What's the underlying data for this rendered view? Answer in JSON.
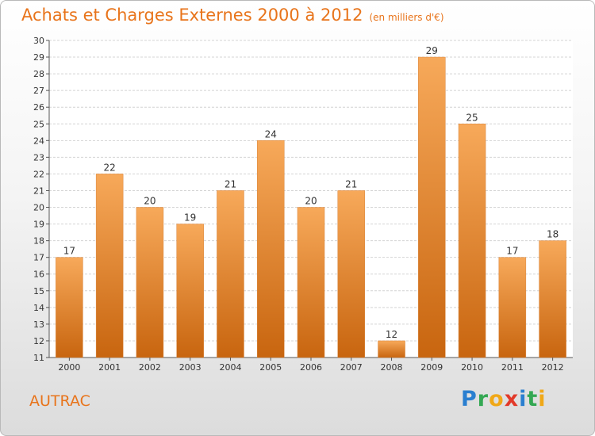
{
  "header": {
    "title": "Achats et Charges Externes 2000 à 2012",
    "unit": "(en milliers d'€)"
  },
  "footer": {
    "commune": "AUTRAC",
    "logo_letters": [
      {
        "ch": "P",
        "color": "#2a7fd0"
      },
      {
        "ch": "r",
        "color": "#34a853"
      },
      {
        "ch": "o",
        "color": "#f0a818"
      },
      {
        "ch": "x",
        "color": "#e23a2a"
      },
      {
        "ch": "i",
        "color": "#2a7fd0"
      },
      {
        "ch": "t",
        "color": "#34a853"
      },
      {
        "ch": "i",
        "color": "#f0a818"
      }
    ]
  },
  "colors": {
    "bar_top": "#f7a95a",
    "bar_bottom": "#c8650f",
    "accent": "#e8741b",
    "grid": "#d4d4d4"
  },
  "chart_data": {
    "type": "bar",
    "title": "Achats et Charges Externes 2000 à 2012",
    "unit": "(en milliers d'€)",
    "xlabel": "",
    "ylabel": "",
    "categories": [
      "2000",
      "2001",
      "2002",
      "2003",
      "2004",
      "2005",
      "2006",
      "2007",
      "2008",
      "2009",
      "2010",
      "2011",
      "2012"
    ],
    "values": [
      17,
      22,
      20,
      19,
      21,
      24,
      20,
      21,
      12,
      29,
      25,
      17,
      18
    ],
    "ylim": [
      11,
      30
    ],
    "yticks": [
      11,
      12,
      13,
      14,
      15,
      16,
      17,
      18,
      19,
      20,
      21,
      22,
      23,
      24,
      25,
      26,
      27,
      28,
      29,
      30
    ],
    "grid": true,
    "legend": "none"
  }
}
